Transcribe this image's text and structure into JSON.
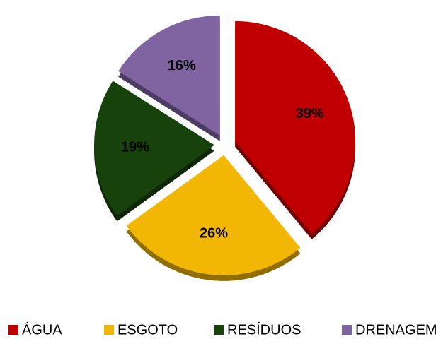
{
  "chart_data": {
    "type": "pie",
    "categories": [
      "ÁGUA",
      "ESGOTO",
      "RESÍDUOS",
      "DRENAGEM"
    ],
    "values": [
      39,
      26,
      19,
      16
    ],
    "value_labels": [
      "39%",
      "26%",
      "19%",
      "16%"
    ],
    "colors": [
      "#c00000",
      "#f2b705",
      "#17420b",
      "#8064a2"
    ],
    "legend": "bottom"
  }
}
